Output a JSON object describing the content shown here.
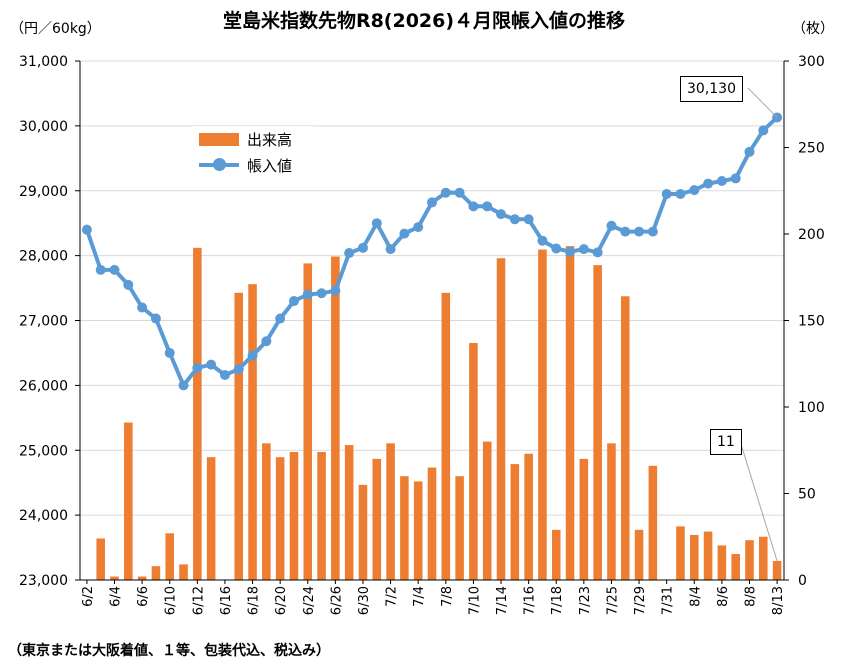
{
  "title": "堂島米指数先物R8(2026)４月限帳入値の推移",
  "unit_left": "（円／60kg）",
  "unit_right": "（枚）",
  "footnote": "（東京または大阪着値、１等、包装代込、税込み）",
  "legend": {
    "bar_label": "出来高",
    "line_label": "帳入値"
  },
  "callouts": {
    "last_price": "30,130",
    "last_volume": "11"
  },
  "colors": {
    "bar": "#ED7D31",
    "line": "#5B9BD5",
    "grid": "#D9D9D9"
  },
  "chart_data": {
    "type": "bar+line",
    "categories": [
      "6/2",
      "6/3",
      "6/4",
      "6/5",
      "6/6",
      "6/9",
      "6/10",
      "6/11",
      "6/12",
      "6/13",
      "6/16",
      "6/17",
      "6/18",
      "6/19",
      "6/20",
      "6/23",
      "6/24",
      "6/25",
      "6/26",
      "6/27",
      "6/30",
      "7/1",
      "7/2",
      "7/3",
      "7/4",
      "7/7",
      "7/8",
      "7/9",
      "7/10",
      "7/11",
      "7/14",
      "7/15",
      "7/16",
      "7/17",
      "7/18",
      "7/22",
      "7/23",
      "7/24",
      "7/25",
      "7/28",
      "7/29",
      "7/30",
      "7/31",
      "8/1",
      "8/4",
      "8/5",
      "8/6",
      "8/7",
      "8/8",
      "8/12",
      "8/13"
    ],
    "x_tick_labels": [
      "6/2",
      "6/4",
      "6/6",
      "6/10",
      "6/12",
      "6/16",
      "6/18",
      "6/20",
      "6/24",
      "6/26",
      "6/30",
      "7/2",
      "7/4",
      "7/8",
      "7/10",
      "7/14",
      "7/16",
      "7/18",
      "7/23",
      "7/25",
      "7/29",
      "7/31",
      "8/4",
      "8/6",
      "8/8",
      "8/13"
    ],
    "series": [
      {
        "name": "出来高",
        "axis": "right",
        "type": "bar",
        "values": [
          0,
          24,
          2,
          91,
          2,
          8,
          27,
          9,
          192,
          71,
          0,
          166,
          171,
          79,
          71,
          74,
          183,
          74,
          187,
          78,
          55,
          70,
          79,
          60,
          57,
          65,
          166,
          60,
          137,
          80,
          186,
          67,
          73,
          191,
          29,
          193,
          70,
          182,
          79,
          164,
          29,
          66,
          0,
          31,
          26,
          28,
          20,
          15,
          23,
          25,
          11
        ]
      },
      {
        "name": "帳入値",
        "axis": "left",
        "type": "line",
        "values": [
          28400,
          27780,
          27780,
          27550,
          27200,
          27030,
          26500,
          26000,
          26270,
          26320,
          26160,
          26250,
          26460,
          26680,
          27030,
          27300,
          27400,
          27420,
          27460,
          28040,
          28120,
          28500,
          28100,
          28340,
          28440,
          28820,
          28970,
          28970,
          28760,
          28760,
          28640,
          28560,
          28560,
          28230,
          28110,
          28060,
          28100,
          28050,
          28460,
          28370,
          28370,
          28370,
          28950,
          28950,
          29010,
          29110,
          29150,
          29190,
          29600,
          29930,
          30130
        ]
      }
    ],
    "ylim_left": [
      23000,
      31000
    ],
    "yticks_left": [
      "23,000",
      "24,000",
      "25,000",
      "26,000",
      "27,000",
      "28,000",
      "29,000",
      "30,000",
      "31,000"
    ],
    "ylim_right": [
      0,
      300
    ],
    "yticks_right": [
      "0",
      "50",
      "100",
      "150",
      "200",
      "250",
      "300"
    ],
    "grid": "horizontal",
    "legend_position": "upper-left inside plot"
  }
}
